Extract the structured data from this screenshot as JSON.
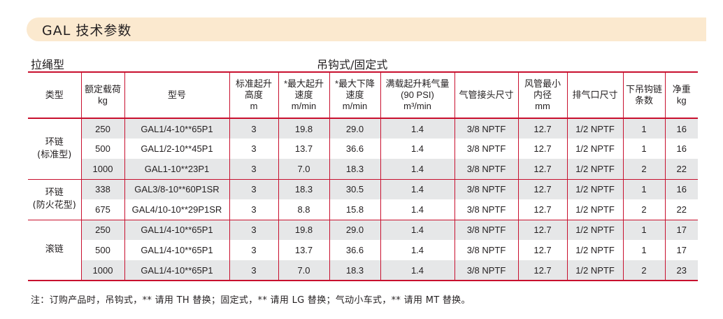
{
  "title": "GAL 技术参数",
  "subtitle_left": "拉绳型",
  "subtitle_center": "吊钩式/固定式",
  "headers": [
    [
      "类型"
    ],
    [
      "额定载荷",
      "kg"
    ],
    [
      "型号"
    ],
    [
      "标准起升",
      "高度",
      "m"
    ],
    [
      "*最大起升",
      "速度",
      "m/min"
    ],
    [
      "*最大下降",
      "速度",
      "m/min"
    ],
    [
      "满载起升耗气量",
      "(90 PSI)",
      "m³/min"
    ],
    [
      "气管接头尺寸"
    ],
    [
      "风管最小",
      "内径",
      "mm"
    ],
    [
      "排气口尺寸"
    ],
    [
      "下吊钩链",
      "条数"
    ],
    [
      "净重",
      "kg"
    ]
  ],
  "groups": [
    {
      "type_lines": [
        "环链",
        "(标准型)"
      ],
      "rows": [
        [
          "250",
          "GAL1/4-10**65P1",
          "3",
          "19.8",
          "29.0",
          "1.4",
          "3/8 NPTF",
          "12.7",
          "1/2 NPTF",
          "1",
          "16"
        ],
        [
          "500",
          "GAL1/2-10**45P1",
          "3",
          "13.7",
          "36.6",
          "1.4",
          "3/8 NPTF",
          "12.7",
          "1/2 NPTF",
          "1",
          "16"
        ],
        [
          "1000",
          "GAL1-10**23P1",
          "3",
          "7.0",
          "18.3",
          "1.4",
          "3/8 NPTF",
          "12.7",
          "1/2 NPTF",
          "2",
          "22"
        ]
      ]
    },
    {
      "type_lines": [
        "环链",
        "(防火花型)"
      ],
      "rows": [
        [
          "338",
          "GAL3/8-10**60P1SR",
          "3",
          "18.3",
          "30.5",
          "1.4",
          "3/8 NPTF",
          "12.7",
          "1/2 NPTF",
          "1",
          "16"
        ],
        [
          "675",
          "GAL4/10-10**29P1SR",
          "3",
          "8.8",
          "15.8",
          "1.4",
          "3/8 NPTF",
          "12.7",
          "1/2 NPTF",
          "2",
          "22"
        ]
      ]
    },
    {
      "type_lines": [
        "滚链"
      ],
      "rows": [
        [
          "250",
          "GAL1/4-10**65P1",
          "3",
          "19.8",
          "29.0",
          "1.4",
          "3/8 NPTF",
          "12.7",
          "1/2 NPTF",
          "1",
          "17"
        ],
        [
          "500",
          "GAL1/4-10**65P1",
          "3",
          "13.7",
          "36.6",
          "1.4",
          "3/8 NPTF",
          "12.7",
          "1/2 NPTF",
          "1",
          "17"
        ],
        [
          "1000",
          "GAL1/4-10**65P1",
          "3",
          "7.0",
          "18.3",
          "1.4",
          "3/8 NPTF",
          "12.7",
          "1/2 NPTF",
          "2",
          "23"
        ]
      ]
    }
  ],
  "note": "注：订购产品时，吊钩式，** 请用 TH 替换；固定式，** 请用 LG 替换；气动小车式，** 请用 MT 替换。",
  "colors": {
    "title_band": "#fbe9cf",
    "rule_red": "#c8102e",
    "row_shade": "#e6e7e8"
  }
}
